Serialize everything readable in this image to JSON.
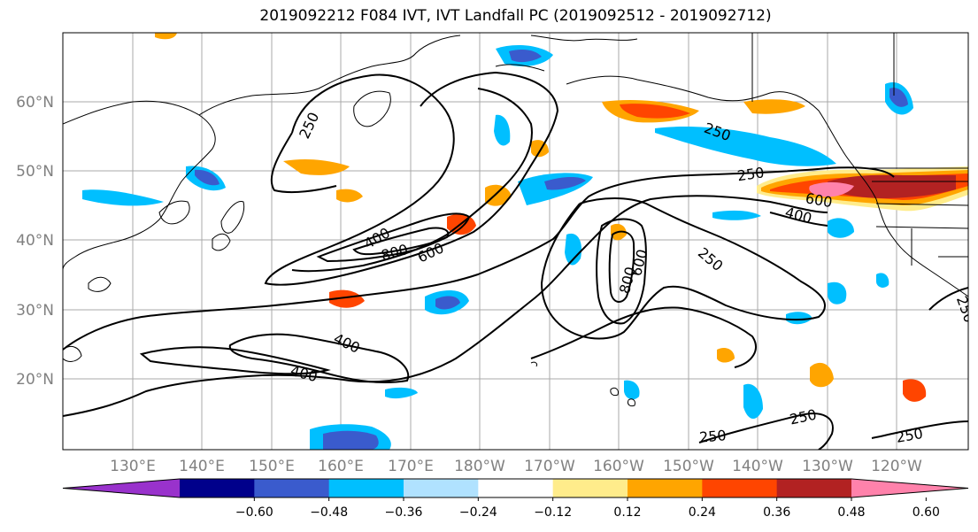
{
  "title": "2019092212 F084 IVT, IVT Landfall PC (2019092512 - 2019092712)",
  "lat_labels": [
    "60°N",
    "50°N",
    "40°N",
    "30°N",
    "20°N"
  ],
  "lon_labels": [
    "130°E",
    "140°E",
    "150°E",
    "160°E",
    "170°E",
    "180°W",
    "170°W",
    "160°W",
    "150°W",
    "140°W",
    "130°W",
    "120°W"
  ],
  "colorbar": {
    "colors": [
      "#9932cc",
      "#00008b",
      "#3a5bcd",
      "#00bfff",
      "#b0e2ff",
      "#ffffff",
      "#ffec8b",
      "#ffa500",
      "#ff4500",
      "#b22222",
      "#ff82ab"
    ],
    "ticks": [
      "−0.60",
      "−0.48",
      "−0.36",
      "−0.24",
      "−0.12",
      "0.12",
      "0.24",
      "0.36",
      "0.48",
      "0.60"
    ]
  },
  "contour_labels": [
    "250",
    "400",
    "800",
    "600",
    "250",
    "400",
    "600",
    "250",
    "250",
    "800",
    "600",
    "400",
    "400",
    "250",
    "250",
    "250",
    "250"
  ]
}
